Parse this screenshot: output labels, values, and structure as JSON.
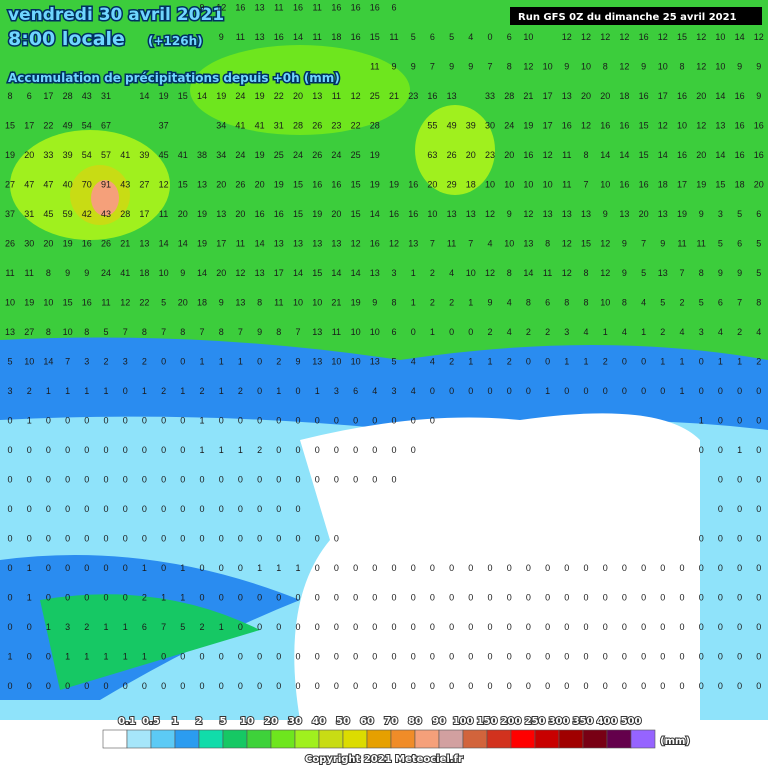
{
  "header": {
    "date": "vendredi 30 avril 2021",
    "time": "8:00 locale",
    "lead": "(+126h)",
    "subtitle": "Accumulation de précipitations depuis +0h (mm)",
    "run": "Run GFS 0Z du dimanche 25 avril 2021"
  },
  "grid": [
    [
      null,
      null,
      null,
      null,
      null,
      null,
      null,
      null,
      null,
      null,
      9,
      12,
      16,
      13,
      11,
      16,
      11,
      16,
      16,
      16,
      6,
      null,
      null,
      null,
      null,
      null,
      null,
      null,
      null,
      null,
      null,
      null,
      null,
      null,
      null,
      null,
      null,
      null,
      null,
      null
    ],
    [
      null,
      null,
      null,
      null,
      null,
      null,
      null,
      null,
      null,
      null,
      null,
      9,
      11,
      13,
      16,
      14,
      11,
      18,
      16,
      15,
      11,
      5,
      6,
      5,
      4,
      0,
      6,
      10,
      null,
      12,
      12,
      12,
      12,
      16,
      12,
      15,
      12,
      10,
      14,
      12
    ],
    [
      null,
      null,
      null,
      null,
      null,
      null,
      null,
      null,
      null,
      null,
      null,
      null,
      null,
      null,
      null,
      null,
      null,
      null,
      null,
      11,
      9,
      9,
      7,
      9,
      9,
      7,
      8,
      12,
      10,
      9,
      10,
      8,
      12,
      9,
      10,
      8,
      12,
      10,
      9,
      9
    ],
    [
      8,
      6,
      17,
      28,
      43,
      31,
      null,
      14,
      19,
      15,
      14,
      19,
      24,
      19,
      22,
      20,
      13,
      11,
      12,
      25,
      21,
      23,
      16,
      13,
      null,
      33,
      28,
      21,
      17,
      13,
      20,
      20,
      18,
      16,
      17,
      16,
      20,
      14,
      16,
      9
    ],
    [
      15,
      17,
      22,
      49,
      54,
      67,
      null,
      null,
      37,
      null,
      null,
      34,
      41,
      41,
      31,
      28,
      26,
      23,
      22,
      28,
      null,
      null,
      55,
      49,
      39,
      30,
      24,
      19,
      17,
      16,
      12,
      16,
      16,
      15,
      12,
      10,
      12,
      13,
      16,
      16
    ],
    [
      19,
      20,
      33,
      39,
      54,
      57,
      41,
      39,
      45,
      41,
      38,
      34,
      24,
      19,
      25,
      24,
      26,
      24,
      25,
      19,
      null,
      null,
      63,
      26,
      20,
      23,
      20,
      16,
      12,
      11,
      8,
      14,
      14,
      15,
      14,
      16,
      20,
      14,
      16,
      16
    ],
    [
      27,
      47,
      47,
      40,
      70,
      91,
      43,
      27,
      12,
      15,
      13,
      20,
      26,
      20,
      19,
      15,
      16,
      16,
      15,
      19,
      19,
      16,
      20,
      29,
      18,
      10,
      10,
      10,
      10,
      11,
      7,
      10,
      16,
      16,
      18,
      17,
      19,
      15,
      18,
      20
    ],
    [
      37,
      31,
      45,
      59,
      42,
      43,
      28,
      17,
      11,
      20,
      19,
      13,
      20,
      16,
      16,
      15,
      19,
      20,
      15,
      14,
      16,
      16,
      10,
      13,
      13,
      12,
      9,
      12,
      13,
      13,
      13,
      9,
      13,
      20,
      13,
      19,
      9,
      3,
      5,
      6
    ],
    [
      26,
      30,
      20,
      19,
      16,
      26,
      21,
      13,
      14,
      14,
      19,
      17,
      11,
      14,
      13,
      13,
      13,
      13,
      12,
      16,
      12,
      13,
      7,
      11,
      7,
      4,
      10,
      13,
      8,
      12,
      15,
      12,
      9,
      7,
      9,
      11,
      11,
      5,
      6,
      5
    ],
    [
      11,
      11,
      8,
      9,
      9,
      24,
      41,
      18,
      10,
      9,
      14,
      20,
      12,
      13,
      17,
      14,
      15,
      14,
      14,
      13,
      3,
      1,
      2,
      4,
      10,
      12,
      8,
      14,
      11,
      12,
      8,
      12,
      9,
      5,
      13,
      7,
      8,
      9,
      9,
      5
    ],
    [
      10,
      19,
      10,
      15,
      16,
      11,
      12,
      22,
      5,
      20,
      18,
      9,
      13,
      8,
      11,
      10,
      10,
      21,
      19,
      9,
      8,
      1,
      2,
      2,
      1,
      9,
      4,
      8,
      6,
      8,
      8,
      10,
      8,
      4,
      5,
      2,
      5,
      6,
      7,
      8
    ],
    [
      13,
      27,
      8,
      10,
      8,
      5,
      7,
      8,
      7,
      8,
      7,
      8,
      7,
      9,
      8,
      7,
      13,
      11,
      10,
      10,
      6,
      0,
      1,
      0,
      0,
      2,
      4,
      2,
      2,
      3,
      4,
      1,
      4,
      1,
      2,
      4,
      3,
      4,
      2,
      4
    ],
    [
      5,
      10,
      14,
      7,
      3,
      2,
      3,
      2,
      0,
      0,
      1,
      1,
      1,
      0,
      2,
      9,
      13,
      10,
      10,
      13,
      5,
      4,
      4,
      2,
      1,
      1,
      2,
      0,
      0,
      1,
      1,
      2,
      0,
      0,
      1,
      1,
      0,
      1,
      1,
      2
    ],
    [
      3,
      2,
      1,
      1,
      1,
      1,
      0,
      1,
      2,
      1,
      2,
      1,
      2,
      0,
      1,
      0,
      1,
      3,
      6,
      4,
      3,
      4,
      0,
      0,
      0,
      0,
      0,
      0,
      1,
      0,
      0,
      0,
      0,
      0,
      0,
      1,
      0,
      0,
      0,
      0
    ],
    [
      0,
      1,
      0,
      0,
      0,
      0,
      0,
      0,
      0,
      0,
      1,
      0,
      0,
      0,
      0,
      0,
      0,
      0,
      0,
      0,
      0,
      0,
      0,
      null,
      null,
      null,
      null,
      null,
      null,
      null,
      null,
      null,
      null,
      null,
      null,
      null,
      1,
      0,
      0,
      0
    ],
    [
      0,
      0,
      0,
      0,
      0,
      0,
      0,
      0,
      0,
      0,
      1,
      1,
      1,
      2,
      0,
      0,
      0,
      0,
      0,
      0,
      0,
      0,
      null,
      null,
      null,
      null,
      null,
      null,
      null,
      null,
      null,
      null,
      null,
      null,
      null,
      null,
      0,
      0,
      1,
      0
    ],
    [
      0,
      0,
      0,
      0,
      0,
      0,
      0,
      0,
      0,
      0,
      0,
      0,
      0,
      0,
      0,
      0,
      0,
      0,
      0,
      0,
      0,
      null,
      null,
      null,
      null,
      null,
      null,
      null,
      null,
      null,
      null,
      null,
      null,
      null,
      null,
      null,
      null,
      0,
      0,
      0
    ],
    [
      0,
      0,
      0,
      0,
      0,
      0,
      0,
      0,
      0,
      0,
      0,
      0,
      0,
      0,
      0,
      0,
      null,
      null,
      null,
      null,
      null,
      null,
      null,
      null,
      null,
      null,
      null,
      null,
      null,
      null,
      null,
      null,
      null,
      null,
      null,
      null,
      null,
      0,
      0,
      0
    ],
    [
      0,
      0,
      0,
      0,
      0,
      0,
      0,
      0,
      0,
      0,
      0,
      0,
      0,
      0,
      0,
      0,
      0,
      0,
      null,
      null,
      null,
      null,
      null,
      null,
      null,
      null,
      null,
      null,
      null,
      null,
      null,
      null,
      null,
      null,
      null,
      null,
      0,
      0,
      0,
      0
    ],
    [
      0,
      1,
      0,
      0,
      0,
      0,
      0,
      1,
      0,
      1,
      0,
      0,
      0,
      1,
      1,
      1,
      0,
      0,
      0,
      0,
      0,
      0,
      0,
      0,
      0,
      0,
      0,
      0,
      0,
      0,
      0,
      0,
      0,
      0,
      0,
      0,
      0,
      0,
      0,
      0
    ],
    [
      0,
      1,
      0,
      0,
      0,
      0,
      0,
      2,
      1,
      1,
      0,
      0,
      0,
      0,
      0,
      0,
      0,
      0,
      0,
      0,
      0,
      0,
      0,
      0,
      0,
      0,
      0,
      0,
      0,
      0,
      0,
      0,
      0,
      0,
      0,
      0,
      0,
      0,
      0,
      0
    ],
    [
      0,
      0,
      1,
      3,
      2,
      1,
      1,
      6,
      7,
      5,
      2,
      1,
      0,
      0,
      0,
      0,
      0,
      0,
      0,
      0,
      0,
      0,
      0,
      0,
      0,
      0,
      0,
      0,
      0,
      0,
      0,
      0,
      0,
      0,
      0,
      0,
      0,
      0,
      0,
      0
    ],
    [
      1,
      0,
      0,
      1,
      1,
      1,
      1,
      1,
      0,
      0,
      0,
      0,
      0,
      0,
      0,
      0,
      0,
      0,
      0,
      0,
      0,
      0,
      0,
      0,
      0,
      0,
      0,
      0,
      0,
      0,
      0,
      0,
      0,
      0,
      0,
      0,
      0,
      0,
      0,
      0
    ],
    [
      0,
      0,
      0,
      0,
      0,
      0,
      0,
      0,
      0,
      0,
      0,
      0,
      0,
      0,
      0,
      0,
      0,
      0,
      0,
      0,
      0,
      0,
      0,
      0,
      0,
      0,
      0,
      0,
      0,
      0,
      0,
      0,
      0,
      0,
      0,
      0,
      0,
      0,
      0,
      0
    ]
  ],
  "legend": {
    "labels": [
      0.1,
      0.5,
      1,
      2,
      5,
      10,
      20,
      30,
      40,
      50,
      60,
      70,
      80,
      90,
      100,
      150,
      200,
      250,
      300,
      350,
      400,
      500
    ],
    "colors": [
      "#ffffff",
      "#a6e6fa",
      "#5ccaf5",
      "#2b9cf0",
      "#11dcaa",
      "#16c864",
      "#3ed23a",
      "#6ee61e",
      "#a0f01e",
      "#c8dc14",
      "#dcdc00",
      "#e6a000",
      "#f08c28",
      "#f5a07a",
      "#d2a0a0",
      "#d2643c",
      "#d2321e",
      "#ff0000",
      "#c80000",
      "#a00000",
      "#780014",
      "#64004b",
      "#9664ff"
    ],
    "unit": "(mm)"
  },
  "footer": {
    "copyright": "Copyright 2021 Meteociel.fr"
  }
}
